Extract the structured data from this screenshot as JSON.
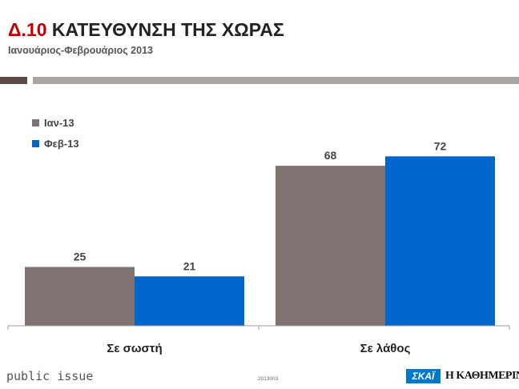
{
  "header": {
    "title_code": "Δ.10",
    "title_text": "ΚΑΤΕΥΘΥΝΣΗ ΤΗΣ ΧΩΡΑΣ",
    "subtitle": "Ιανουάριος-Φεβρουάριος 2013"
  },
  "colors": {
    "series_jan": "#7f7472",
    "series_feb": "#0066cc",
    "title_accent": "#c00000"
  },
  "chart_data": {
    "type": "bar",
    "categories": [
      "Σε σωστή",
      "Σε λάθος"
    ],
    "series": [
      {
        "name": "Ιαν-13",
        "values": [
          25,
          68
        ],
        "color": "#7f7472"
      },
      {
        "name": "Φεβ-13",
        "values": [
          21,
          72
        ],
        "color": "#0066cc"
      }
    ],
    "ylim": [
      0,
      80
    ],
    "grid": false,
    "legend": "top-left",
    "data_labels": true
  },
  "footer": {
    "brand": "public issue",
    "code": "2013003",
    "logo_skai": "ΣΚΑΪ",
    "logo_kathimerini": "Η ΚΑΘΗΜΕΡΙΝΗ"
  }
}
